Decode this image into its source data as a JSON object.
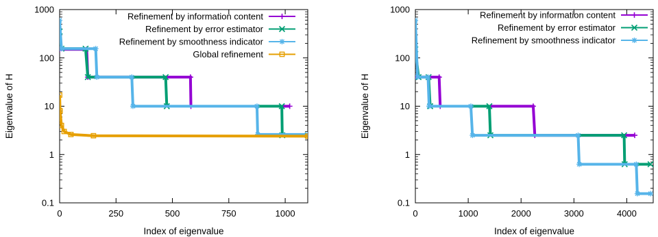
{
  "chart_data": [
    {
      "type": "line",
      "title": "",
      "xlabel": "Index of eigenvalue",
      "ylabel": "Eigenvalue of H",
      "x_scale": "linear",
      "y_scale": "log",
      "xlim": [
        0,
        1100
      ],
      "ylim": [
        0.1,
        1000
      ],
      "x_ticks": [
        0,
        250,
        500,
        750,
        1000
      ],
      "x_tick_labels": [
        "0",
        "250",
        "500",
        "750",
        "1000"
      ],
      "y_ticks": [
        0.1,
        1,
        10,
        100,
        1000
      ],
      "y_tick_labels": [
        "0.1",
        "1",
        "10",
        "100",
        "1000"
      ],
      "grid": false,
      "legend_position": "top-right",
      "series": [
        {
          "name": "Refinement by information content",
          "color": "#9400d3",
          "marker": "plus",
          "points": [
            [
              0,
              150
            ],
            [
              120,
              150
            ],
            [
              125,
              40
            ],
            [
              580,
              40
            ],
            [
              582,
              10
            ],
            [
              1020,
              10
            ]
          ]
        },
        {
          "name": "Refinement by error estimator",
          "color": "#009e73",
          "marker": "x",
          "points": [
            [
              0,
              350
            ],
            [
              8,
              155
            ],
            [
              115,
              155
            ],
            [
              125,
              40
            ],
            [
              470,
              40
            ],
            [
              475,
              10
            ],
            [
              985,
              10
            ],
            [
              987,
              2.5
            ],
            [
              1100,
              2.5
            ]
          ]
        },
        {
          "name": "Refinement by smoothness indicator",
          "color": "#56b4e9",
          "marker": "star",
          "points": [
            [
              0,
              600
            ],
            [
              8,
              155
            ],
            [
              160,
              155
            ],
            [
              165,
              40
            ],
            [
              320,
              40
            ],
            [
              325,
              10
            ],
            [
              875,
              10
            ],
            [
              878,
              2.6
            ],
            [
              1100,
              2.6
            ]
          ]
        },
        {
          "name": "Global refinement",
          "color": "#e69f00",
          "marker": "square",
          "points": [
            [
              0,
              17
            ],
            [
              2,
              8
            ],
            [
              8,
              4
            ],
            [
              20,
              3
            ],
            [
              50,
              2.6
            ],
            [
              150,
              2.45
            ],
            [
              1100,
              2.4
            ]
          ]
        }
      ]
    },
    {
      "type": "line",
      "title": "",
      "xlabel": "Index of eigenvalue",
      "ylabel": "Eigenvalue of H",
      "x_scale": "linear",
      "y_scale": "log",
      "xlim": [
        0,
        4500
      ],
      "ylim": [
        0.1,
        1000
      ],
      "x_ticks": [
        0,
        1000,
        2000,
        3000,
        4000
      ],
      "x_tick_labels": [
        "0",
        "1000",
        "2000",
        "3000",
        "4000"
      ],
      "y_ticks": [
        0.1,
        1,
        10,
        100,
        1000
      ],
      "y_tick_labels": [
        "0.1",
        "1",
        "10",
        "100",
        "1000"
      ],
      "grid": false,
      "legend_position": "top-right",
      "series": [
        {
          "name": "Refinement by information content",
          "color": "#9400d3",
          "marker": "plus",
          "points": [
            [
              0,
              40
            ],
            [
              450,
              40
            ],
            [
              470,
              10
            ],
            [
              2230,
              10
            ],
            [
              2260,
              2.5
            ],
            [
              4150,
              2.5
            ]
          ]
        },
        {
          "name": "Refinement by error estimator",
          "color": "#009e73",
          "marker": "x",
          "points": [
            [
              0,
              150
            ],
            [
              60,
              40
            ],
            [
              250,
              40
            ],
            [
              280,
              10
            ],
            [
              1400,
              10
            ],
            [
              1420,
              2.5
            ],
            [
              3950,
              2.5
            ],
            [
              3960,
              0.63
            ],
            [
              4450,
              0.63
            ]
          ]
        },
        {
          "name": "Refinement by smoothness indicator",
          "color": "#56b4e9",
          "marker": "star",
          "points": [
            [
              0,
              600
            ],
            [
              40,
              40
            ],
            [
              240,
              40
            ],
            [
              260,
              10
            ],
            [
              1050,
              10
            ],
            [
              1080,
              2.5
            ],
            [
              3080,
              2.5
            ],
            [
              3100,
              0.63
            ],
            [
              4180,
              0.63
            ],
            [
              4200,
              0.155
            ],
            [
              4450,
              0.155
            ]
          ]
        }
      ]
    }
  ]
}
